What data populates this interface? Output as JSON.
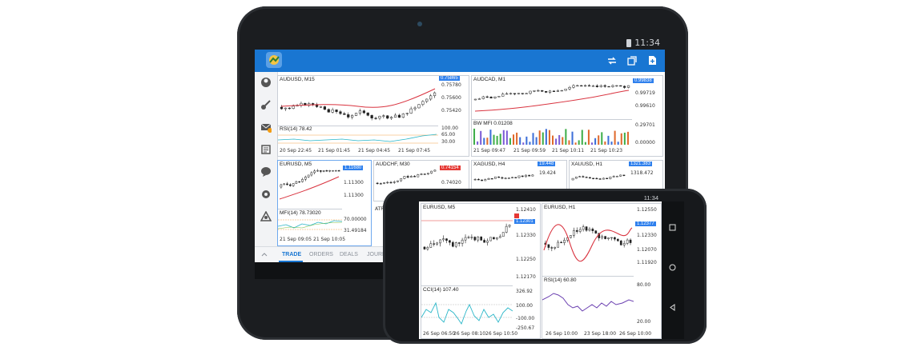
{
  "tablet": {
    "status_time": "11:34",
    "app_icons": [
      "logo-icon",
      "trade-icon",
      "windows-icon",
      "new-document-icon"
    ],
    "sidebar_icons": [
      "quotes-icon",
      "key-icon",
      "mail-icon",
      "news-icon",
      "chat-icon",
      "settings-icon",
      "community-icon"
    ],
    "bottom_tabs": [
      "TRADE",
      "ORDERS",
      "DEALS",
      "JOURNAL"
    ],
    "charts": {
      "audusd": {
        "title": "AUDUSD, M15",
        "price_tag": "0.75865",
        "prices": [
          "0.75780",
          "0.75600",
          "0.75420"
        ],
        "indicator": "RSI(14) 78.42",
        "ind_levels": [
          "100.00",
          "65.00",
          "30.00"
        ],
        "times": [
          "20 Sep 22:45",
          "21 Sep 01:45",
          "21 Sep 04:45",
          "21 Sep 07:45"
        ]
      },
      "audcad": {
        "title": "AUDCAD, M1",
        "price_tag": "0.99838",
        "prices": [
          "0.99719",
          "0.99610"
        ],
        "indicator": "BW MFI 0.01208",
        "ind_levels": [
          "0.29701",
          "0.00000"
        ],
        "times": [
          "21 Sep 09:47",
          "21 Sep 09:59",
          "21 Sep 10:11",
          "21 Sep 10:23"
        ]
      },
      "eurusd_tab": {
        "title": "EURUSD, M5",
        "price_tag": "1.11680",
        "prices": [
          "1.11300",
          "1.11300"
        ],
        "indicator": "MFI(14) 78.73020",
        "ind_levels": [
          "70.00000",
          "31.49184"
        ],
        "times": [
          "21 Sep 09:05",
          "21 Sep 10:05"
        ]
      },
      "audchf": {
        "title": "AUDCHF, M30",
        "price_tag": "0.74154",
        "prices": [
          "0.74020"
        ],
        "indicator": "ATR"
      },
      "xagusd": {
        "title": "XAGUSD, H4",
        "price_tag": "19.448",
        "prices": [
          "19.424"
        ]
      },
      "xauusd": {
        "title": "XAUUSD, H1",
        "price_tag": "1321.383",
        "prices": [
          "1318.472"
        ]
      }
    }
  },
  "phone": {
    "status_time": "11:34",
    "nav_icons": [
      "recent-apps-icon",
      "home-icon",
      "back-icon"
    ],
    "charts": {
      "eurusd": {
        "title": "EURUSD, M5",
        "price_tag": "1.12301",
        "prices": [
          "1.12410",
          "1.12330",
          "1.12250",
          "1.12170"
        ],
        "indicator": "CCI(14) 107.40",
        "ind_levels": [
          "326.92",
          "100.00",
          "-100.00",
          "-250.67"
        ],
        "times": [
          "26 Sep 06:50",
          "26 Sep 08:10",
          "26 Sep 10:50"
        ]
      },
      "eurusd_h1": {
        "title": "EURUSD, H1",
        "price_tag": "1.12377",
        "prices": [
          "1.12550",
          "1.12330",
          "1.12070",
          "1.11920"
        ],
        "indicator": "RSI(14) 60.80",
        "ind_levels": [
          "80.00",
          "20.00"
        ],
        "times": [
          "26 Sep 10:00",
          "23 Sep 18:00",
          "26 Sep 10:00"
        ]
      }
    }
  },
  "colors": {
    "appbar": "#1976d2",
    "ma_line": "#d9333f",
    "bull": "#ffffff",
    "bear": "#222222",
    "indicator_cyan": "#29b6c8",
    "indicator_purple": "#6a3fb0",
    "level_line": "#f2a24a",
    "price_tag_blue": "#2f80ed",
    "price_tag_red": "#e53935"
  }
}
